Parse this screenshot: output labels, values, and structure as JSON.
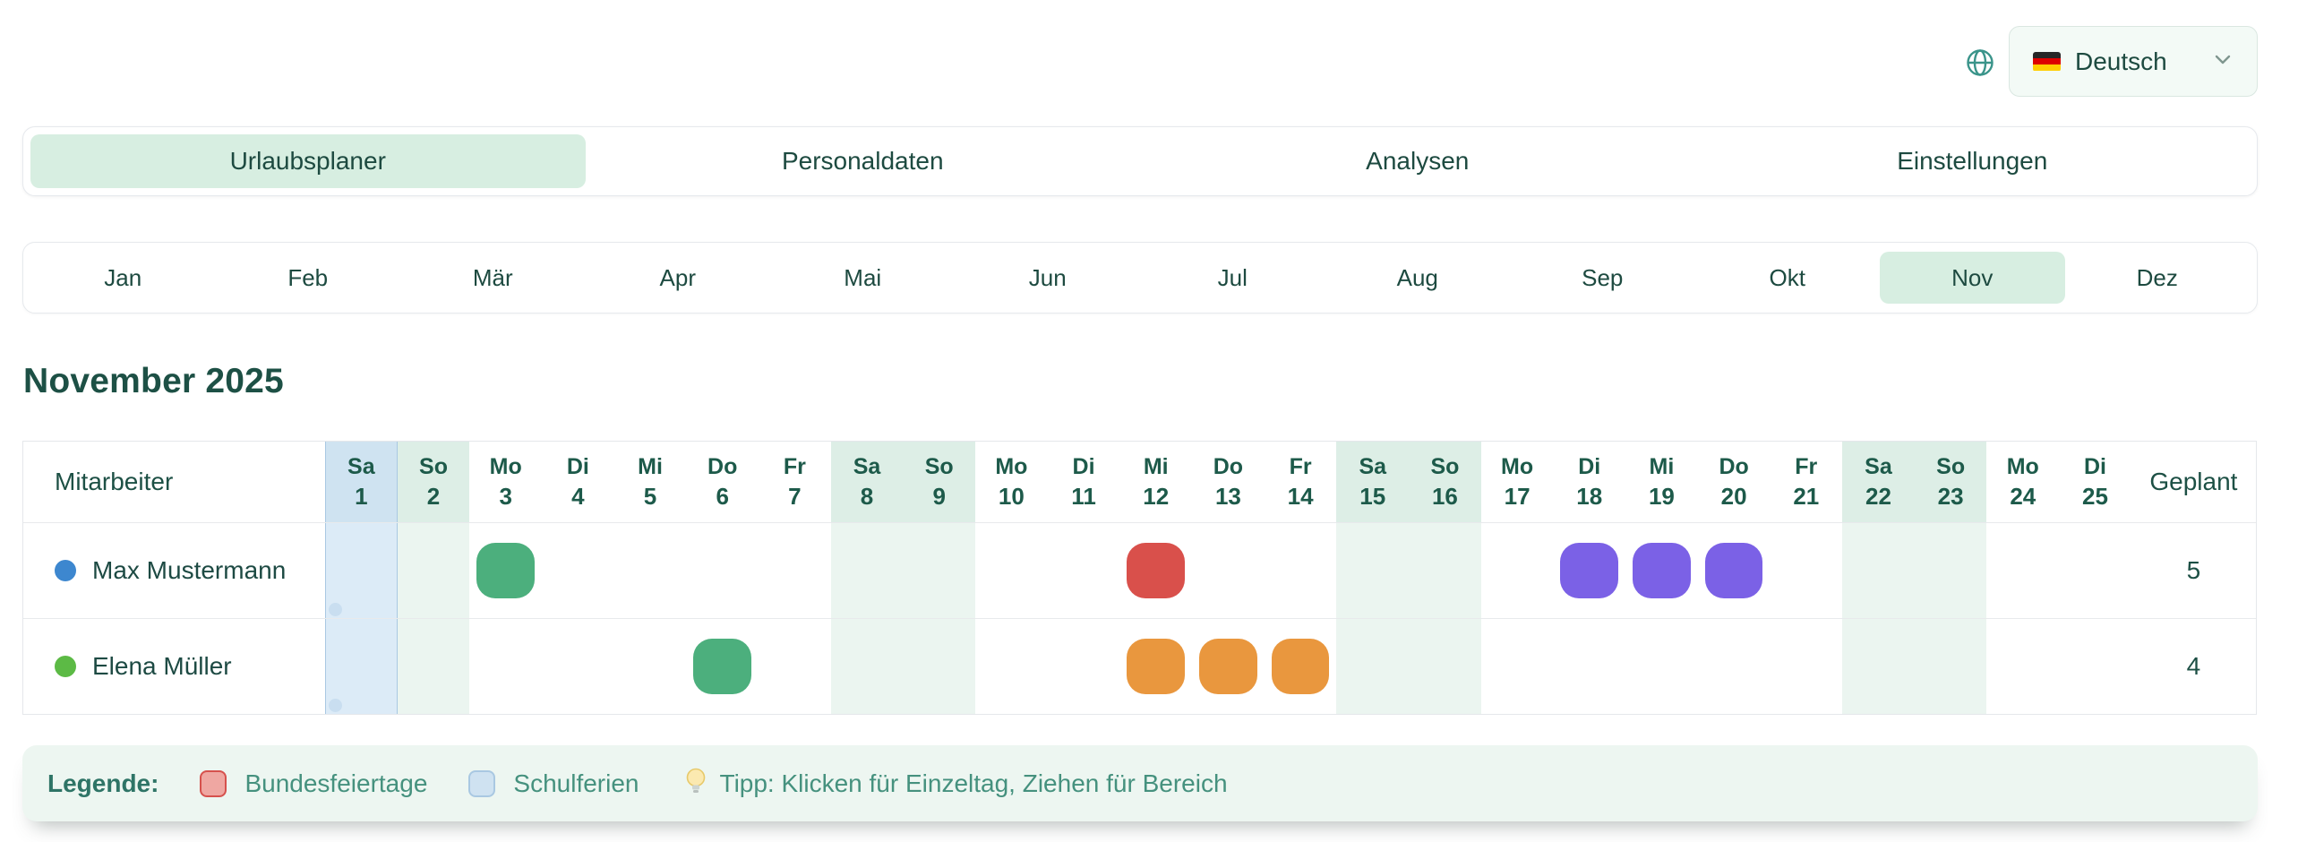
{
  "language": {
    "label": "Deutsch",
    "flag": "german-flag"
  },
  "tabs": [
    {
      "label": "Urlaubsplaner",
      "active": true
    },
    {
      "label": "Personaldaten",
      "active": false
    },
    {
      "label": "Analysen",
      "active": false
    },
    {
      "label": "Einstellungen",
      "active": false
    }
  ],
  "months": [
    {
      "label": "Jan",
      "active": false
    },
    {
      "label": "Feb",
      "active": false
    },
    {
      "label": "Mär",
      "active": false
    },
    {
      "label": "Apr",
      "active": false
    },
    {
      "label": "Mai",
      "active": false
    },
    {
      "label": "Jun",
      "active": false
    },
    {
      "label": "Jul",
      "active": false
    },
    {
      "label": "Aug",
      "active": false
    },
    {
      "label": "Sep",
      "active": false
    },
    {
      "label": "Okt",
      "active": false
    },
    {
      "label": "Nov",
      "active": true
    },
    {
      "label": "Dez",
      "active": false
    }
  ],
  "title": "November 2025",
  "table": {
    "employee_header": "Mitarbeiter",
    "planned_header": "Geplant",
    "days": [
      {
        "weekday": "Sa",
        "num": 1,
        "type": "schulferien"
      },
      {
        "weekday": "So",
        "num": 2,
        "type": "weekend"
      },
      {
        "weekday": "Mo",
        "num": 3,
        "type": "normal"
      },
      {
        "weekday": "Di",
        "num": 4,
        "type": "normal"
      },
      {
        "weekday": "Mi",
        "num": 5,
        "type": "normal"
      },
      {
        "weekday": "Do",
        "num": 6,
        "type": "normal"
      },
      {
        "weekday": "Fr",
        "num": 7,
        "type": "normal"
      },
      {
        "weekday": "Sa",
        "num": 8,
        "type": "weekend"
      },
      {
        "weekday": "So",
        "num": 9,
        "type": "weekend"
      },
      {
        "weekday": "Mo",
        "num": 10,
        "type": "normal"
      },
      {
        "weekday": "Di",
        "num": 11,
        "type": "normal"
      },
      {
        "weekday": "Mi",
        "num": 12,
        "type": "normal"
      },
      {
        "weekday": "Do",
        "num": 13,
        "type": "normal"
      },
      {
        "weekday": "Fr",
        "num": 14,
        "type": "normal"
      },
      {
        "weekday": "Sa",
        "num": 15,
        "type": "weekend"
      },
      {
        "weekday": "So",
        "num": 16,
        "type": "weekend"
      },
      {
        "weekday": "Mo",
        "num": 17,
        "type": "normal"
      },
      {
        "weekday": "Di",
        "num": 18,
        "type": "normal"
      },
      {
        "weekday": "Mi",
        "num": 19,
        "type": "normal"
      },
      {
        "weekday": "Do",
        "num": 20,
        "type": "normal"
      },
      {
        "weekday": "Fr",
        "num": 21,
        "type": "normal"
      },
      {
        "weekday": "Sa",
        "num": 22,
        "type": "weekend"
      },
      {
        "weekday": "So",
        "num": 23,
        "type": "weekend"
      },
      {
        "weekday": "Mo",
        "num": 24,
        "type": "normal"
      },
      {
        "weekday": "Di",
        "num": 25,
        "type": "normal"
      }
    ],
    "rows": [
      {
        "name": "Max Mustermann",
        "dot_color": "#3d87cf",
        "planned": "5",
        "events": [
          {
            "day": 3,
            "color": "#4caf7d"
          },
          {
            "day": 12,
            "color": "#d9504b"
          },
          {
            "day": 18,
            "color": "#7b61e6"
          },
          {
            "day": 19,
            "color": "#7b61e6"
          },
          {
            "day": 20,
            "color": "#7b61e6"
          }
        ]
      },
      {
        "name": "Elena Müller",
        "dot_color": "#5cba45",
        "planned": "4",
        "events": [
          {
            "day": 6,
            "color": "#4caf7d"
          },
          {
            "day": 12,
            "color": "#e9973e"
          },
          {
            "day": 13,
            "color": "#e9973e"
          },
          {
            "day": 14,
            "color": "#e9973e"
          }
        ]
      }
    ]
  },
  "legend": {
    "title": "Legende:",
    "items": [
      {
        "label": "Bundesfeiertage",
        "chip": "red"
      },
      {
        "label": "Schulferien",
        "chip": "blue"
      }
    ],
    "tip": "Tipp: Klicken für Einzeltag, Ziehen für Bereich"
  },
  "colors": {
    "accent_teal": "#3a948a",
    "active_pill": "#d7eee1",
    "dark_text": "#1d4a40",
    "weekend_header": "#ddeee6",
    "weekend_body": "#ebf5f0",
    "schulferien_header": "#cfe3f1",
    "schulferien_body": "#dcebf7",
    "schulferien_border": "#a9c8e2",
    "holiday_red": "#d6514d",
    "legend_text": "#45917e"
  }
}
